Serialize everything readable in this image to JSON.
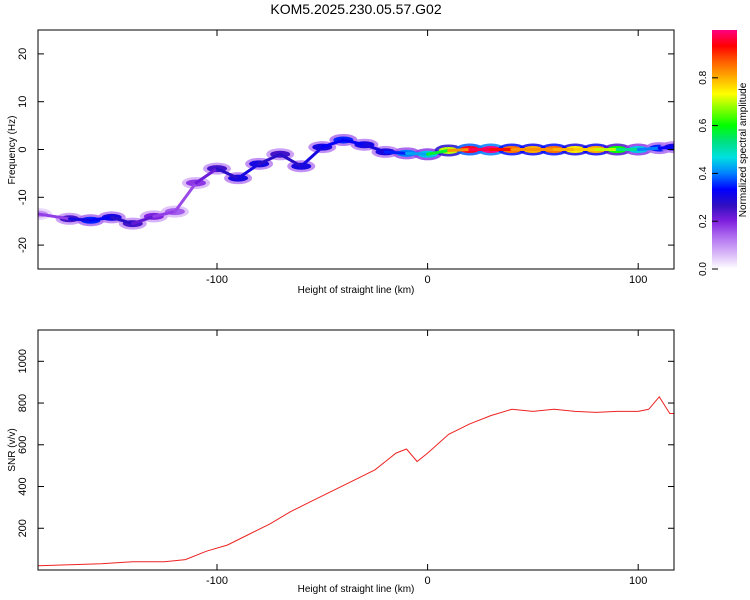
{
  "title": "KOM5.2025.230.05.57.G02",
  "colors": {
    "snr_line": "#ee2222",
    "axis": "#000000",
    "colorbar_stops": [
      "#ffffff",
      "#d8b4f8",
      "#b070f0",
      "#8020e0",
      "#3010c0",
      "#0000ff",
      "#0080ff",
      "#00e0e0",
      "#00e080",
      "#00ff00",
      "#80ff00",
      "#ffff00",
      "#ffb000",
      "#ff6000",
      "#ff0000",
      "#ff0080"
    ]
  },
  "chart_data": [
    {
      "type": "heatmap",
      "title": "",
      "xlabel": "Height of straight line (km)",
      "ylabel": "Frequency (Hz)",
      "xlim": [
        -185,
        117
      ],
      "ylim": [
        -25,
        25
      ],
      "xticks": [
        -100,
        0,
        100
      ],
      "xtick_labels": [
        "-100",
        "0",
        "100"
      ],
      "yticks": [
        -20,
        -10,
        0,
        10,
        20
      ],
      "ytick_labels": [
        "-20",
        "-10",
        "0",
        "10",
        "20"
      ],
      "colorbar": {
        "label": "Normalized spectral amplitude",
        "range": [
          0,
          1
        ],
        "ticks": [
          0.0,
          0.2,
          0.4,
          0.6,
          0.8
        ],
        "tick_labels": [
          "0.0",
          "0.2",
          "0.4",
          "0.6",
          "0.8"
        ]
      },
      "ridge": [
        {
          "x": -185,
          "freq": -13.5,
          "amp": 0.1
        },
        {
          "x": -170,
          "freq": -14.5,
          "amp": 0.25
        },
        {
          "x": -160,
          "freq": -14.8,
          "amp": 0.35
        },
        {
          "x": -150,
          "freq": -14.2,
          "amp": 0.3
        },
        {
          "x": -140,
          "freq": -15.5,
          "amp": 0.25
        },
        {
          "x": -130,
          "freq": -14.0,
          "amp": 0.2
        },
        {
          "x": -120,
          "freq": -13.0,
          "amp": 0.15
        },
        {
          "x": -110,
          "freq": -7.0,
          "amp": 0.18
        },
        {
          "x": -100,
          "freq": -4.0,
          "amp": 0.25
        },
        {
          "x": -90,
          "freq": -6.0,
          "amp": 0.3
        },
        {
          "x": -80,
          "freq": -3.0,
          "amp": 0.3
        },
        {
          "x": -70,
          "freq": -1.0,
          "amp": 0.25
        },
        {
          "x": -60,
          "freq": -3.5,
          "amp": 0.3
        },
        {
          "x": -50,
          "freq": 0.5,
          "amp": 0.3
        },
        {
          "x": -40,
          "freq": 2.0,
          "amp": 0.35
        },
        {
          "x": -30,
          "freq": 1.0,
          "amp": 0.3
        },
        {
          "x": -20,
          "freq": -0.5,
          "amp": 0.3
        },
        {
          "x": -10,
          "freq": -0.8,
          "amp": 0.4
        },
        {
          "x": 0,
          "freq": -1.0,
          "amp": 0.45
        },
        {
          "x": 10,
          "freq": -0.2,
          "amp": 0.7
        },
        {
          "x": 20,
          "freq": 0.0,
          "amp": 0.95
        },
        {
          "x": 30,
          "freq": 0.0,
          "amp": 1.0
        },
        {
          "x": 40,
          "freq": 0.0,
          "amp": 0.85
        },
        {
          "x": 50,
          "freq": 0.0,
          "amp": 0.8
        },
        {
          "x": 60,
          "freq": 0.0,
          "amp": 0.85
        },
        {
          "x": 70,
          "freq": 0.0,
          "amp": 0.75
        },
        {
          "x": 80,
          "freq": 0.0,
          "amp": 0.8
        },
        {
          "x": 90,
          "freq": 0.0,
          "amp": 0.6
        },
        {
          "x": 100,
          "freq": 0.0,
          "amp": 0.45
        },
        {
          "x": 110,
          "freq": 0.3,
          "amp": 0.35
        },
        {
          "x": 117,
          "freq": 0.5,
          "amp": 0.3
        }
      ]
    },
    {
      "type": "line",
      "title": "",
      "xlabel": "Height of straight line (km)",
      "ylabel": "SNR (v/v)",
      "xlim": [
        -185,
        117
      ],
      "ylim": [
        0,
        1150
      ],
      "xticks": [
        -100,
        0,
        100
      ],
      "xtick_labels": [
        "-100",
        "0",
        "100"
      ],
      "yticks": [
        200,
        400,
        600,
        800,
        1000
      ],
      "ytick_labels": [
        "200",
        "400",
        "600",
        "800",
        "1000"
      ],
      "series": [
        {
          "name": "SNR",
          "x": [
            -185,
            -170,
            -155,
            -140,
            -125,
            -115,
            -105,
            -95,
            -85,
            -75,
            -65,
            -55,
            -45,
            -35,
            -25,
            -20,
            -15,
            -10,
            -5,
            0,
            10,
            20,
            30,
            40,
            50,
            60,
            70,
            80,
            90,
            100,
            105,
            110,
            115,
            117
          ],
          "values": [
            20,
            25,
            30,
            40,
            40,
            50,
            90,
            120,
            170,
            220,
            280,
            330,
            380,
            430,
            480,
            520,
            560,
            580,
            520,
            560,
            650,
            700,
            740,
            770,
            760,
            770,
            760,
            755,
            760,
            760,
            770,
            830,
            750,
            750
          ]
        }
      ]
    }
  ]
}
